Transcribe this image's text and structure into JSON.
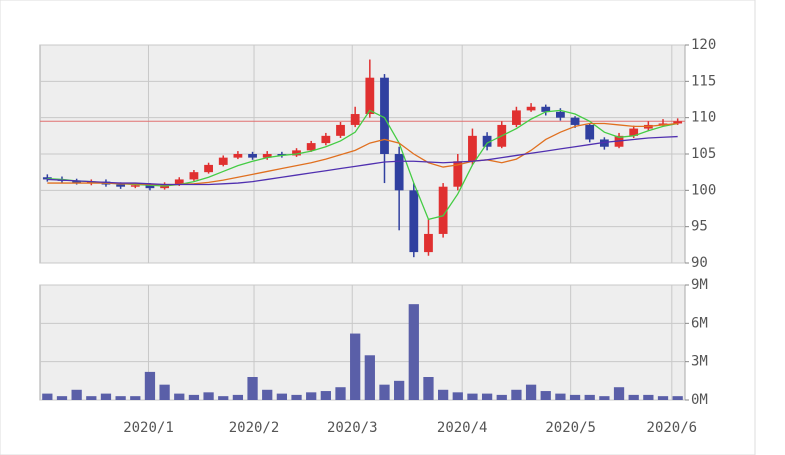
{
  "chart_data": {
    "type": "candlestick",
    "x": [
      0,
      1,
      2,
      3,
      4,
      5,
      6,
      7,
      8,
      9,
      10,
      11,
      12,
      13,
      14,
      15,
      16,
      17,
      18,
      19,
      20,
      21,
      22,
      23,
      24,
      25,
      26,
      27,
      28,
      29,
      30,
      31,
      32,
      33,
      34,
      35,
      36,
      37,
      38,
      39,
      40,
      41,
      42,
      43
    ],
    "open": [
      101.8,
      101.5,
      101.3,
      101.0,
      101.2,
      100.8,
      100.5,
      100.7,
      100.3,
      100.8,
      101.5,
      102.5,
      103.5,
      104.5,
      105.0,
      104.5,
      105.0,
      104.8,
      105.5,
      106.5,
      107.5,
      109.0,
      110.5,
      115.5,
      105.0,
      100.0,
      91.5,
      94.0,
      100.5,
      104.0,
      107.5,
      106.0,
      109.0,
      111.0,
      111.5,
      110.8,
      110.0,
      109.0,
      107.0,
      106.0,
      107.5,
      108.5,
      109.0,
      109.2
    ],
    "high": [
      102.2,
      101.9,
      101.6,
      101.5,
      101.5,
      101.1,
      101.0,
      101.0,
      101.1,
      101.8,
      102.8,
      103.8,
      104.8,
      105.4,
      105.3,
      105.4,
      105.3,
      105.8,
      106.8,
      107.9,
      109.4,
      111.5,
      118.0,
      116.0,
      106.0,
      101.0,
      96.0,
      101.0,
      105.0,
      108.5,
      108.0,
      109.5,
      111.5,
      112.0,
      111.8,
      111.3,
      110.2,
      109.2,
      107.3,
      107.9,
      108.9,
      109.5,
      109.8,
      109.9
    ],
    "low": [
      101.2,
      101.0,
      100.8,
      100.7,
      100.5,
      100.2,
      100.3,
      100.0,
      100.1,
      100.6,
      101.3,
      102.3,
      103.3,
      104.3,
      104.2,
      104.2,
      104.5,
      104.6,
      105.3,
      106.2,
      107.2,
      108.7,
      110.0,
      101.0,
      94.5,
      90.8,
      91.0,
      93.5,
      100.0,
      103.5,
      105.5,
      105.8,
      108.7,
      110.8,
      110.3,
      109.6,
      108.6,
      106.6,
      105.6,
      105.8,
      107.2,
      108.2,
      108.8,
      109.0
    ],
    "close": [
      101.5,
      101.3,
      101.0,
      101.2,
      100.8,
      100.5,
      100.7,
      100.3,
      100.8,
      101.5,
      102.5,
      103.5,
      104.5,
      105.0,
      104.5,
      105.0,
      104.8,
      105.5,
      106.5,
      107.5,
      109.0,
      110.5,
      115.5,
      105.0,
      100.0,
      91.5,
      94.0,
      100.5,
      104.0,
      107.5,
      106.0,
      109.0,
      111.0,
      111.5,
      110.8,
      110.0,
      109.0,
      107.0,
      106.0,
      107.5,
      108.5,
      109.0,
      109.2,
      109.5
    ],
    "up_color": "#e03030",
    "down_color": "#3040a0",
    "series": [
      {
        "color": "#44cc44",
        "values": [
          101.6,
          101.5,
          101.3,
          101.2,
          101.0,
          100.9,
          100.8,
          100.7,
          100.6,
          100.8,
          101.2,
          101.8,
          102.6,
          103.4,
          104.0,
          104.5,
          104.8,
          105.0,
          105.4,
          106.0,
          106.8,
          108.0,
          111.0,
          110.0,
          106.5,
          101.0,
          96.0,
          96.5,
          99.5,
          103.5,
          106.5,
          107.5,
          108.5,
          109.8,
          110.8,
          111.0,
          110.5,
          109.5,
          108.0,
          107.3,
          107.5,
          108.2,
          108.8,
          109.2
        ]
      },
      {
        "color": "#e07020",
        "values": [
          101.0,
          101.0,
          101.0,
          101.0,
          101.0,
          100.9,
          100.9,
          100.8,
          100.8,
          100.8,
          100.9,
          101.1,
          101.4,
          101.8,
          102.2,
          102.6,
          103.0,
          103.4,
          103.8,
          104.3,
          104.9,
          105.5,
          106.5,
          107.0,
          106.5,
          105.0,
          103.8,
          103.2,
          103.5,
          104.0,
          104.2,
          103.8,
          104.3,
          105.5,
          107.0,
          108.0,
          108.8,
          109.2,
          109.2,
          109.0,
          108.8,
          108.8,
          109.0,
          109.2
        ]
      },
      {
        "color": "#5030b0",
        "values": [
          101.5,
          101.4,
          101.3,
          101.2,
          101.1,
          101.0,
          101.0,
          100.9,
          100.8,
          100.8,
          100.8,
          100.8,
          100.9,
          101.0,
          101.2,
          101.5,
          101.8,
          102.1,
          102.4,
          102.7,
          103.0,
          103.3,
          103.6,
          103.9,
          104.0,
          104.0,
          103.9,
          103.8,
          103.9,
          104.0,
          104.2,
          104.5,
          104.8,
          105.1,
          105.4,
          105.7,
          106.0,
          106.3,
          106.6,
          106.8,
          107.0,
          107.2,
          107.3,
          107.4
        ]
      }
    ],
    "hline": 109.5,
    "hline_color": "#e07070",
    "xlim": [
      -0.5,
      43.5
    ],
    "xticks": [
      {
        "value": 6.9,
        "label": "2020/1"
      },
      {
        "value": 14.1,
        "label": "2020/2"
      },
      {
        "value": 20.8,
        "label": "2020/3"
      },
      {
        "value": 28.3,
        "label": "2020/4"
      },
      {
        "value": 35.7,
        "label": "2020/5"
      },
      {
        "value": 42.6,
        "label": "2020/6"
      }
    ],
    "ylim": [
      90,
      120
    ],
    "yticks": [
      90,
      95,
      100,
      105,
      110,
      115,
      120
    ],
    "volume": [
      0.5,
      0.3,
      0.8,
      0.3,
      0.5,
      0.3,
      0.3,
      2.2,
      1.2,
      0.5,
      0.4,
      0.6,
      0.3,
      0.4,
      1.8,
      0.8,
      0.5,
      0.4,
      0.6,
      0.7,
      1.0,
      5.2,
      3.5,
      1.2,
      1.5,
      7.5,
      1.8,
      0.8,
      0.6,
      0.5,
      0.5,
      0.4,
      0.8,
      1.2,
      0.7,
      0.5,
      0.4,
      0.4,
      0.3,
      1.0,
      0.4,
      0.4,
      0.3,
      0.3
    ],
    "volume_color": "#5a5fa8",
    "volume_ylim": [
      0,
      9
    ],
    "volume_yticks": [
      {
        "value": 0,
        "label": "0M"
      },
      {
        "value": 3,
        "label": "3M"
      },
      {
        "value": 6,
        "label": "6M"
      },
      {
        "value": 9,
        "label": "9M"
      }
    ],
    "grid": true
  }
}
